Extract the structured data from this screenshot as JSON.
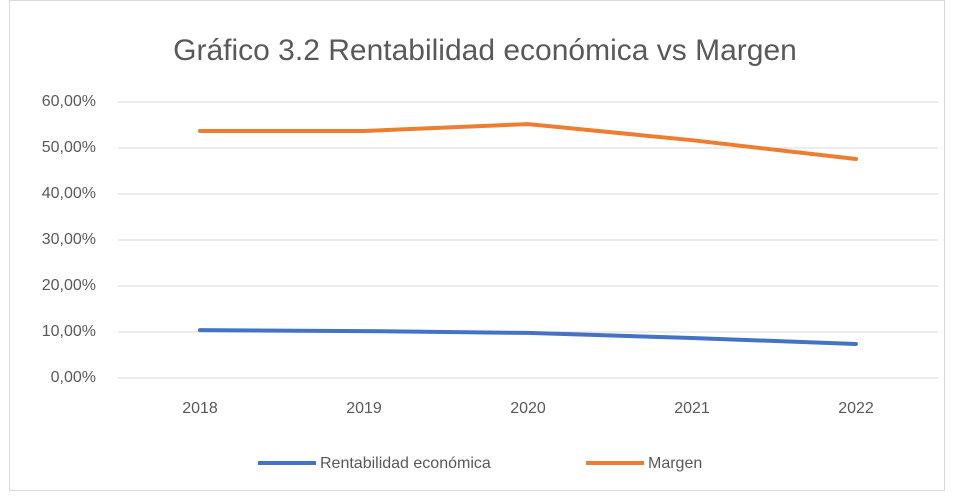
{
  "chart_data": {
    "type": "line",
    "title": "Gráfico 3.2 Rentabilidad económica vs Margen",
    "categories": [
      "2018",
      "2019",
      "2020",
      "2021",
      "2022"
    ],
    "series": [
      {
        "name": "Rentabilidad económica",
        "color": "#4472c4",
        "values": [
          10.4,
          10.2,
          9.8,
          8.7,
          7.4
        ]
      },
      {
        "name": "Margen",
        "color": "#ed7d31",
        "values": [
          53.7,
          53.7,
          55.2,
          51.7,
          47.6
        ]
      }
    ],
    "ylim": [
      0,
      60
    ],
    "yticks": [
      {
        "value": 0,
        "label": "0,00%"
      },
      {
        "value": 10,
        "label": "10,00%"
      },
      {
        "value": 20,
        "label": "20,00%"
      },
      {
        "value": 30,
        "label": "30,00%"
      },
      {
        "value": 40,
        "label": "40,00%"
      },
      {
        "value": 50,
        "label": "50,00%"
      },
      {
        "value": 60,
        "label": "60,00%"
      }
    ],
    "grid": true,
    "legend": "bottom"
  }
}
